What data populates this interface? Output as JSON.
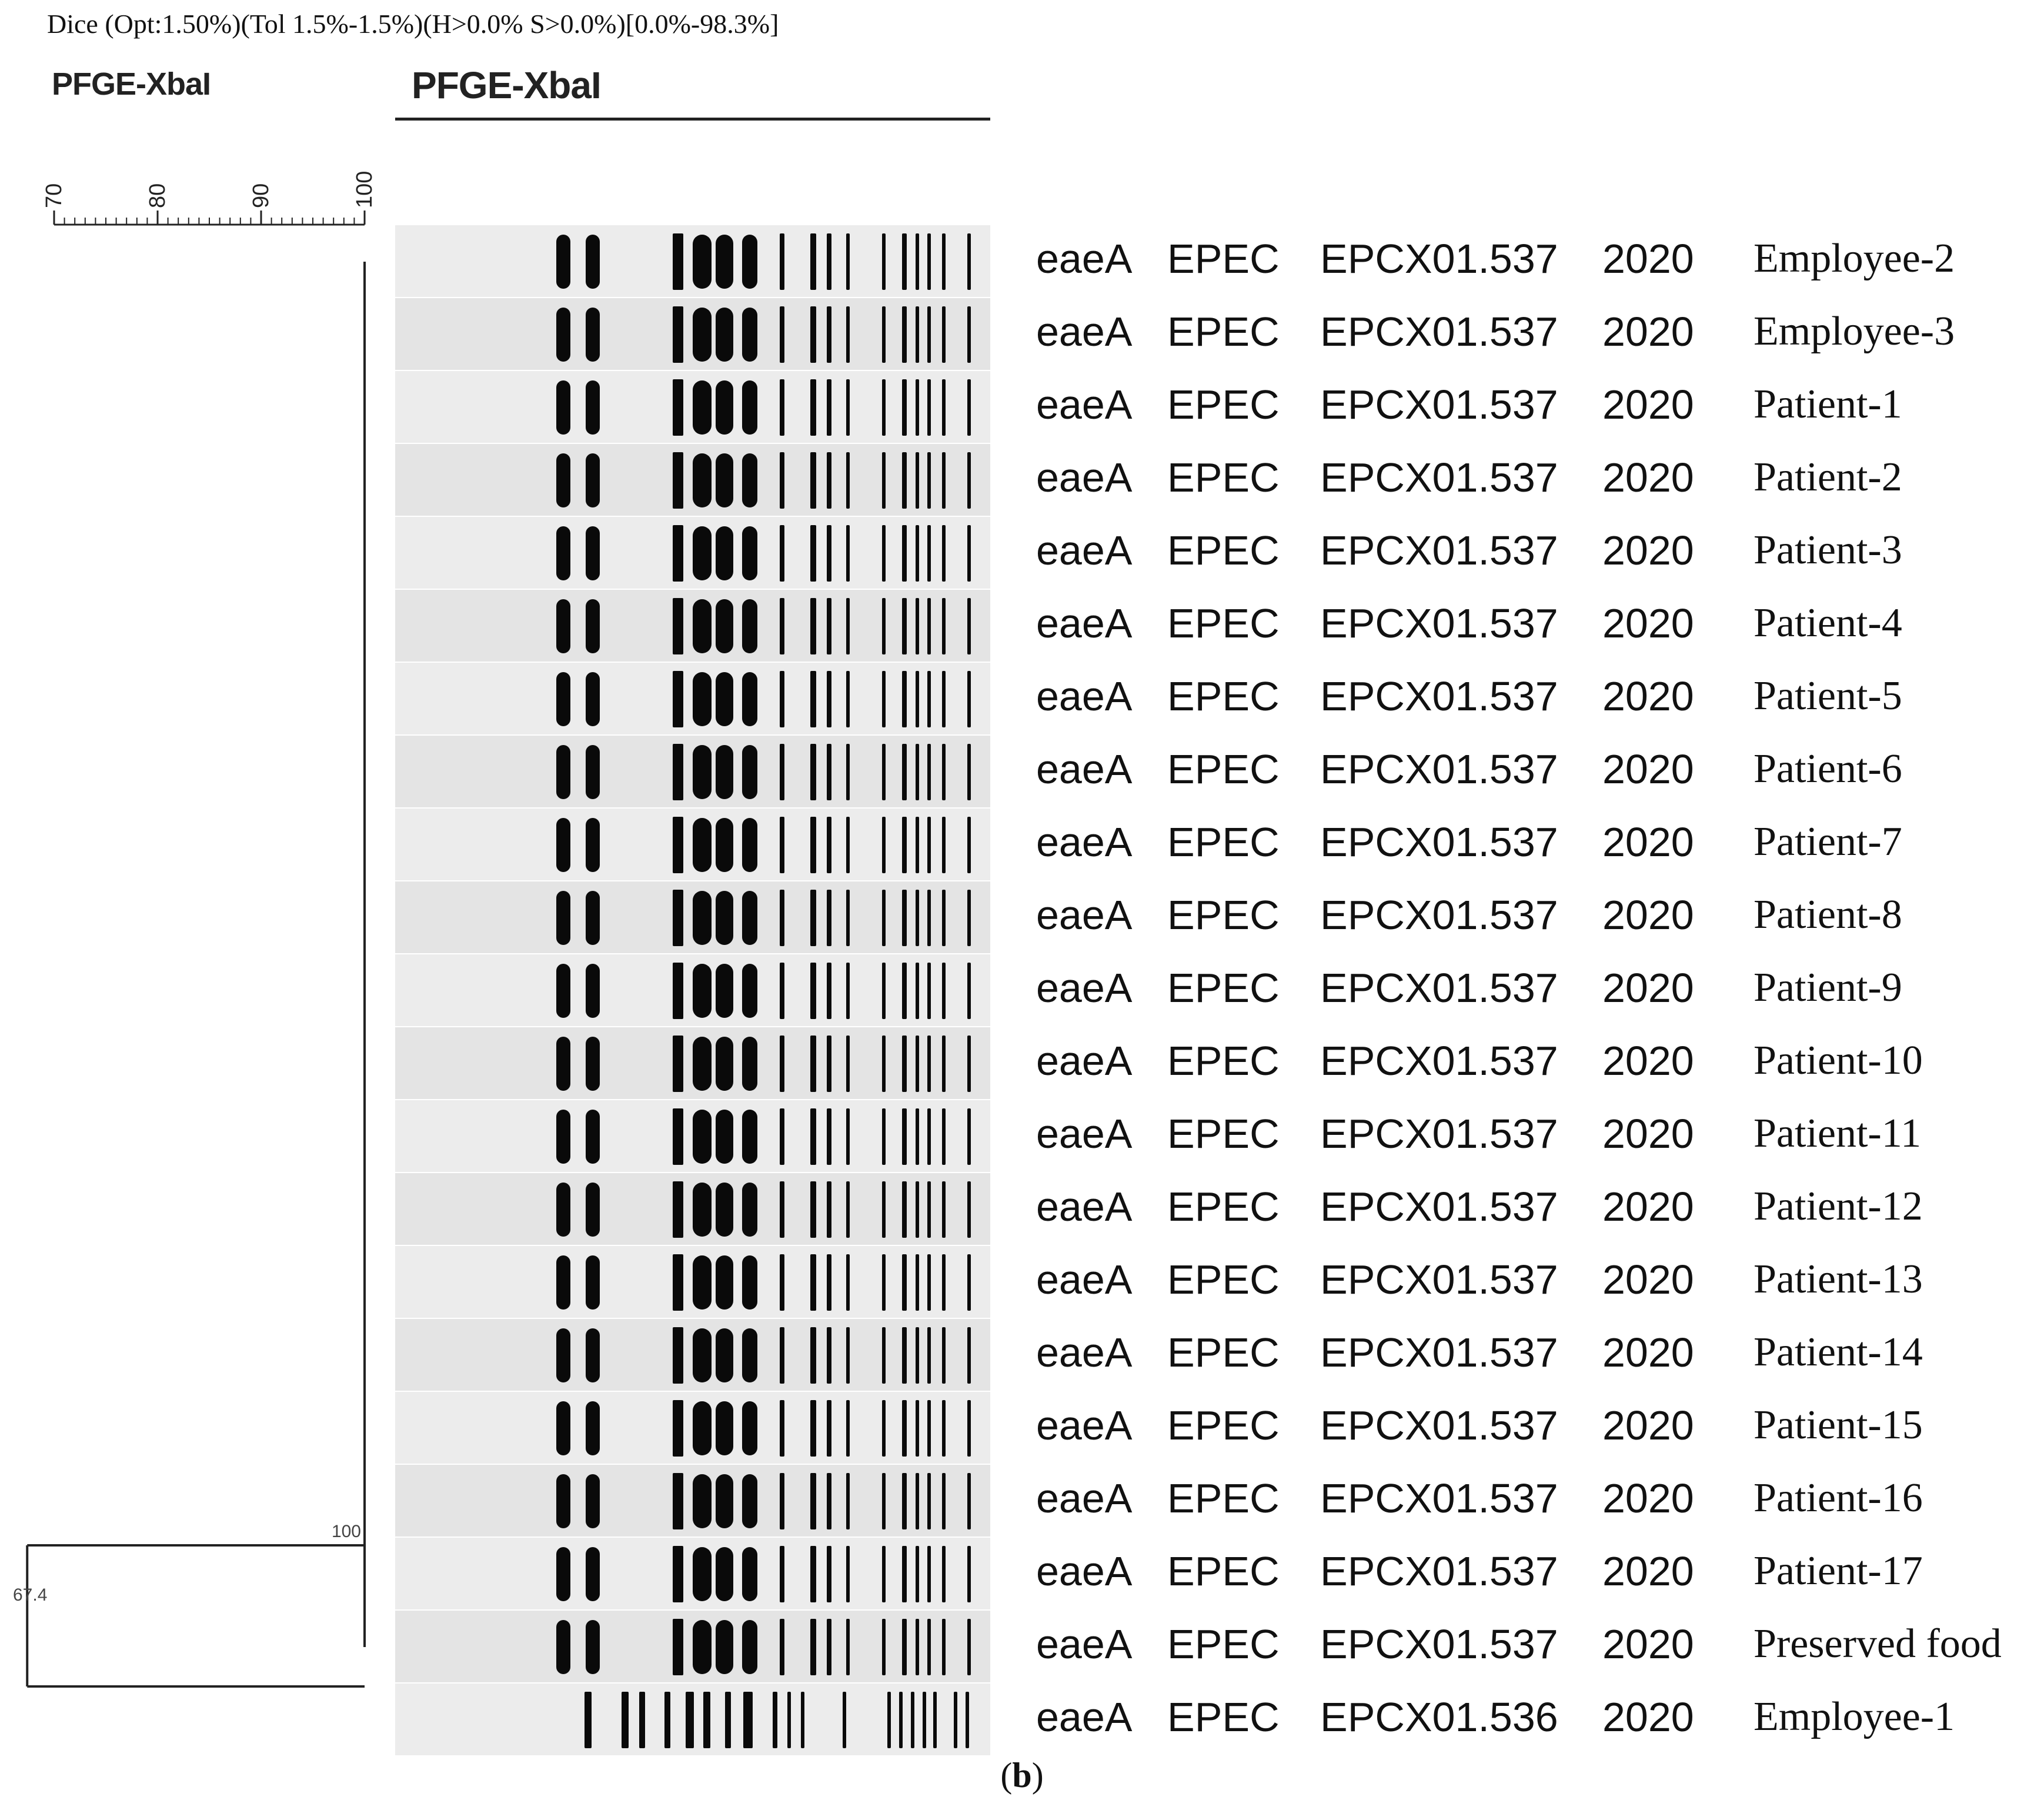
{
  "header": {
    "analysis_text": "Dice (Opt:1.50%)(Tol 1.5%-1.5%)(H>0.0% S>0.0%)[0.0%-98.3%]"
  },
  "experiment_label_left": "PFGE-XbaI",
  "experiment_label_gel": "PFGE-XbaI",
  "scale": {
    "ticks": [
      "70",
      "80",
      "90",
      "100"
    ]
  },
  "dendrogram": {
    "node_inner_label": "100",
    "node_outer_label": "67.4"
  },
  "rows": [
    {
      "gene": "eaeA",
      "pathotype": "EPEC",
      "pattern": "EPCX01.537",
      "year": "2020",
      "source": "Employee-2"
    },
    {
      "gene": "eaeA",
      "pathotype": "EPEC",
      "pattern": "EPCX01.537",
      "year": "2020",
      "source": "Employee-3"
    },
    {
      "gene": "eaeA",
      "pathotype": "EPEC",
      "pattern": "EPCX01.537",
      "year": "2020",
      "source": "Patient-1"
    },
    {
      "gene": "eaeA",
      "pathotype": "EPEC",
      "pattern": "EPCX01.537",
      "year": "2020",
      "source": "Patient-2"
    },
    {
      "gene": "eaeA",
      "pathotype": "EPEC",
      "pattern": "EPCX01.537",
      "year": "2020",
      "source": "Patient-3"
    },
    {
      "gene": "eaeA",
      "pathotype": "EPEC",
      "pattern": "EPCX01.537",
      "year": "2020",
      "source": "Patient-4"
    },
    {
      "gene": "eaeA",
      "pathotype": "EPEC",
      "pattern": "EPCX01.537",
      "year": "2020",
      "source": "Patient-5"
    },
    {
      "gene": "eaeA",
      "pathotype": "EPEC",
      "pattern": "EPCX01.537",
      "year": "2020",
      "source": "Patient-6"
    },
    {
      "gene": "eaeA",
      "pathotype": "EPEC",
      "pattern": "EPCX01.537",
      "year": "2020",
      "source": "Patient-7"
    },
    {
      "gene": "eaeA",
      "pathotype": "EPEC",
      "pattern": "EPCX01.537",
      "year": "2020",
      "source": "Patient-8"
    },
    {
      "gene": "eaeA",
      "pathotype": "EPEC",
      "pattern": "EPCX01.537",
      "year": "2020",
      "source": "Patient-9"
    },
    {
      "gene": "eaeA",
      "pathotype": "EPEC",
      "pattern": "EPCX01.537",
      "year": "2020",
      "source": "Patient-10"
    },
    {
      "gene": "eaeA",
      "pathotype": "EPEC",
      "pattern": "EPCX01.537",
      "year": "2020",
      "source": "Patient-11"
    },
    {
      "gene": "eaeA",
      "pathotype": "EPEC",
      "pattern": "EPCX01.537",
      "year": "2020",
      "source": "Patient-12"
    },
    {
      "gene": "eaeA",
      "pathotype": "EPEC",
      "pattern": "EPCX01.537",
      "year": "2020",
      "source": "Patient-13"
    },
    {
      "gene": "eaeA",
      "pathotype": "EPEC",
      "pattern": "EPCX01.537",
      "year": "2020",
      "source": "Patient-14"
    },
    {
      "gene": "eaeA",
      "pathotype": "EPEC",
      "pattern": "EPCX01.537",
      "year": "2020",
      "source": "Patient-15"
    },
    {
      "gene": "eaeA",
      "pathotype": "EPEC",
      "pattern": "EPCX01.537",
      "year": "2020",
      "source": "Patient-16"
    },
    {
      "gene": "eaeA",
      "pathotype": "EPEC",
      "pattern": "EPCX01.537",
      "year": "2020",
      "source": "Patient-17"
    },
    {
      "gene": "eaeA",
      "pathotype": "EPEC",
      "pattern": "EPCX01.537",
      "year": "2020",
      "source": "Preserved food"
    },
    {
      "gene": "eaeA",
      "pathotype": "EPEC",
      "pattern": "EPCX01.536",
      "year": "2020",
      "source": "Employee-1"
    }
  ],
  "caption": "(b)",
  "colors": {
    "band": "#0a0a0a",
    "lane_background": "#ececec",
    "text": "#111111"
  }
}
